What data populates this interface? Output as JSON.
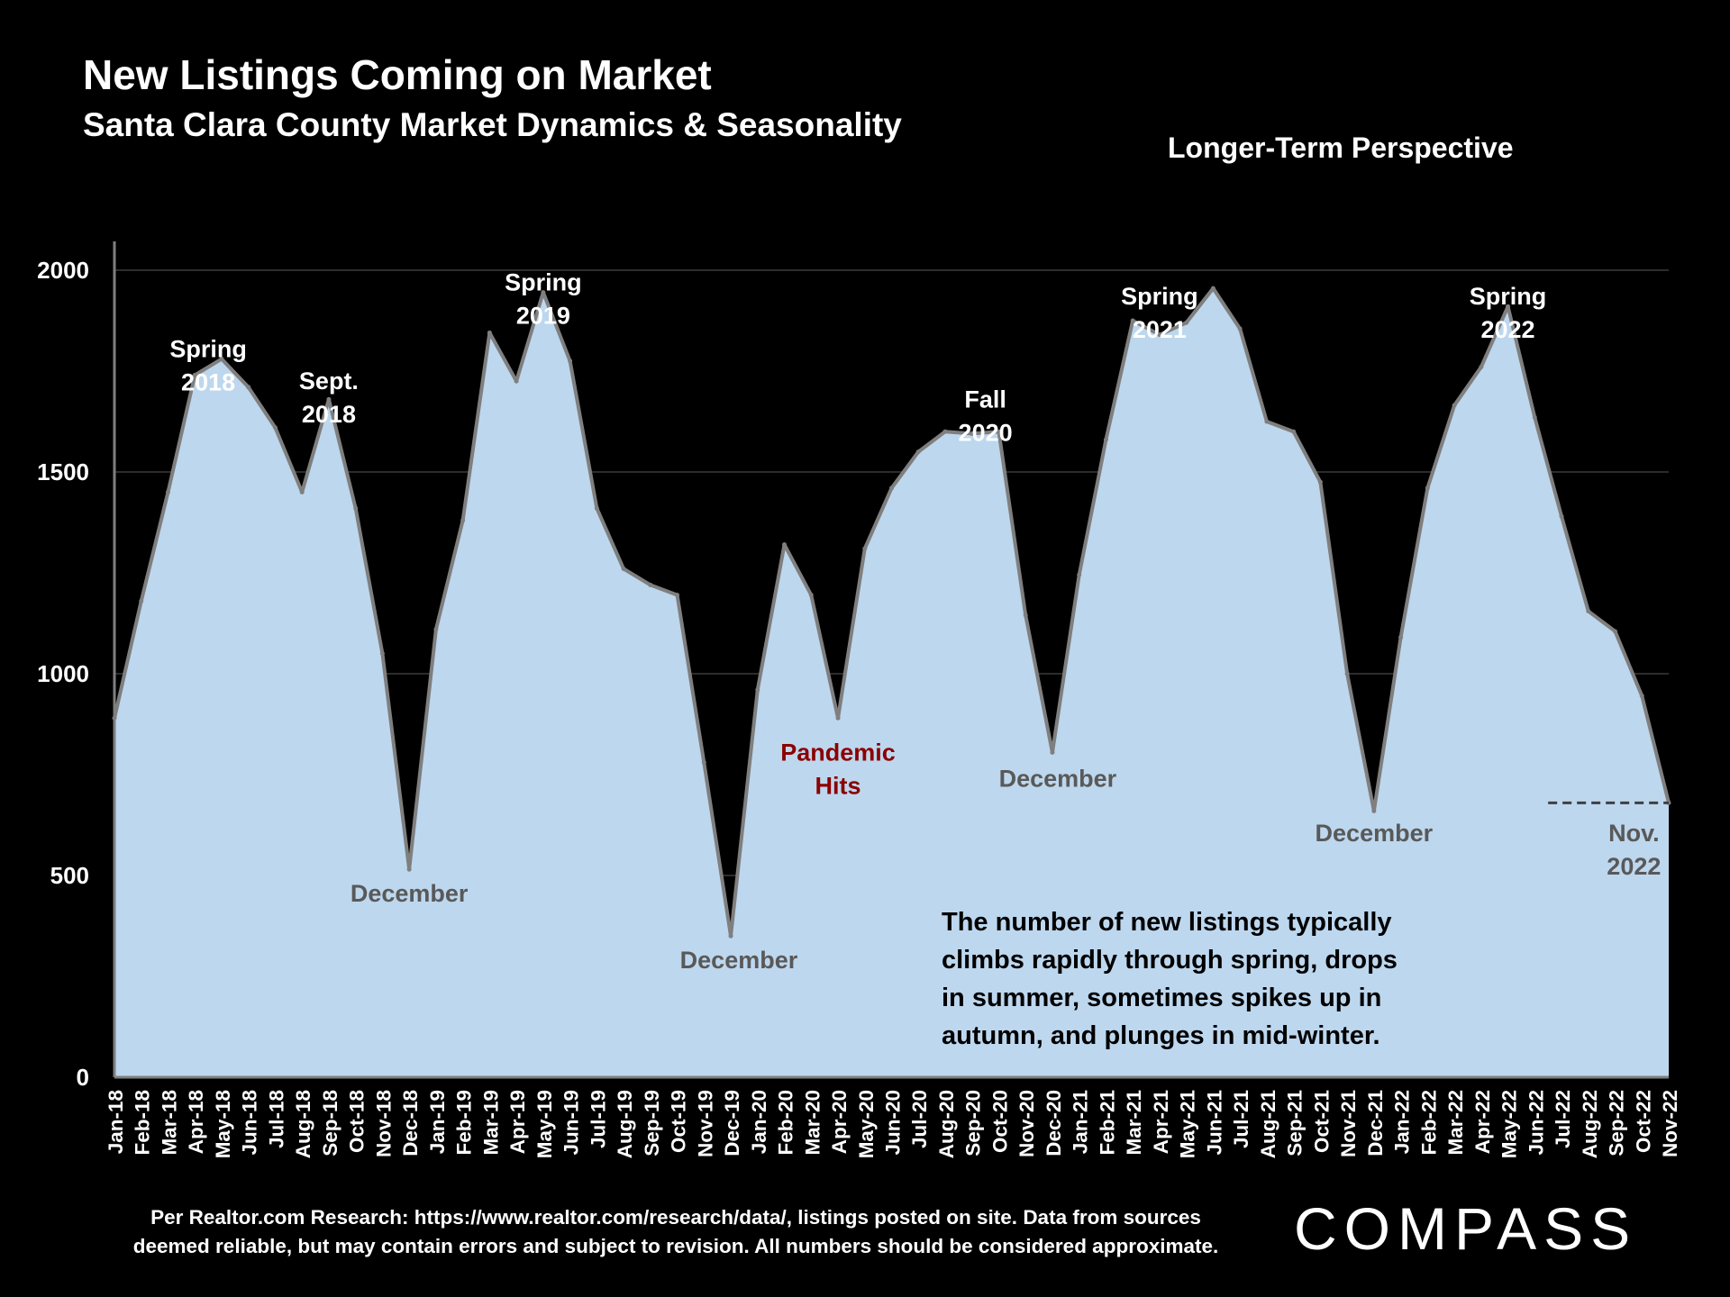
{
  "header": {
    "title": "New Listings Coming on Market",
    "subtitle": "Santa Clara County Market Dynamics & Seasonality",
    "perspective": "Longer-Term Perspective"
  },
  "footer": {
    "source_line1": "Per Realtor.com Research:  https://www.realtor.com/research/data/, listings posted on site. Data from sources",
    "source_line2": "deemed reliable, but may contain errors and subject to revision. All numbers should be considered approximate.",
    "logo": "COMPASS"
  },
  "colors": {
    "fill": "#bdd7ee",
    "line": "#7f7f7f",
    "annotation_red": "#8b0000",
    "annotation_gray": "#595959"
  },
  "chart_data": {
    "type": "area",
    "ylim": [
      0,
      2000
    ],
    "yticks": [
      0,
      500,
      1000,
      1500,
      2000
    ],
    "grid": true,
    "categories": [
      "Jan-18",
      "Feb-18",
      "Mar-18",
      "Apr-18",
      "May-18",
      "Jun-18",
      "Jul-18",
      "Aug-18",
      "Sep-18",
      "Oct-18",
      "Nov-18",
      "Dec-18",
      "Jan-19",
      "Feb-19",
      "Mar-19",
      "Apr-19",
      "May-19",
      "Jun-19",
      "Jul-19",
      "Aug-19",
      "Sep-19",
      "Oct-19",
      "Nov-19",
      "Dec-19",
      "Jan-20",
      "Feb-20",
      "Mar-20",
      "Apr-20",
      "May-20",
      "Jun-20",
      "Jul-20",
      "Aug-20",
      "Sep-20",
      "Oct-20",
      "Nov-20",
      "Dec-20",
      "Jan-21",
      "Feb-21",
      "Mar-21",
      "Apr-21",
      "May-21",
      "Jun-21",
      "Jul-21",
      "Aug-21",
      "Sep-21",
      "Oct-21",
      "Nov-21",
      "Dec-21",
      "Jan-22",
      "Feb-22",
      "Mar-22",
      "Apr-22",
      "May-22",
      "Jun-22",
      "Jul-22",
      "Aug-22",
      "Sep-22",
      "Oct-22",
      "Nov-22"
    ],
    "values": [
      890,
      1180,
      1450,
      1740,
      1780,
      1710,
      1610,
      1450,
      1680,
      1410,
      1050,
      515,
      1110,
      1380,
      1845,
      1725,
      1945,
      1775,
      1410,
      1260,
      1220,
      1195,
      780,
      350,
      960,
      1320,
      1195,
      890,
      1310,
      1460,
      1550,
      1600,
      1595,
      1600,
      1145,
      805,
      1245,
      1580,
      1875,
      1840,
      1870,
      1955,
      1855,
      1625,
      1600,
      1475,
      1000,
      660,
      1090,
      1460,
      1665,
      1760,
      1910,
      1635,
      1390,
      1155,
      1105,
      945,
      680
    ],
    "annotations": [
      {
        "text": [
          "Spring",
          "2018"
        ],
        "x": 3.5,
        "y": 1785,
        "color": "white"
      },
      {
        "text": [
          "Sept.",
          "2018"
        ],
        "x": 8,
        "y": 1705,
        "color": "white"
      },
      {
        "text": [
          "Spring",
          "2019"
        ],
        "x": 16,
        "y": 1950,
        "color": "white"
      },
      {
        "text": [
          "Fall",
          "2020"
        ],
        "x": 32.5,
        "y": 1660,
        "color": "white"
      },
      {
        "text": [
          "Spring",
          "2021"
        ],
        "x": 39,
        "y": 1915,
        "color": "white"
      },
      {
        "text": [
          "Spring",
          "2022"
        ],
        "x": 52,
        "y": 1915,
        "color": "white"
      },
      {
        "text": [
          "December"
        ],
        "x": 11,
        "y": 435,
        "color": "gray"
      },
      {
        "text": [
          "December"
        ],
        "x": 23.3,
        "y": 270,
        "color": "gray"
      },
      {
        "text": [
          "December"
        ],
        "x": 35.2,
        "y": 720,
        "color": "gray"
      },
      {
        "text": [
          "December"
        ],
        "x": 47,
        "y": 585,
        "color": "gray"
      },
      {
        "text": [
          "Pandemic",
          "Hits"
        ],
        "x": 27,
        "y": 785,
        "color": "red"
      },
      {
        "text": [
          "Nov.",
          "2022"
        ],
        "x": 56.7,
        "y": 585,
        "color": "gray"
      }
    ],
    "reference_line": {
      "y": 680,
      "x_start": 53.5,
      "x_end": 58
    },
    "note": [
      "The number of new listings typically",
      "climbs rapidly through spring, drops",
      "in summer, sometimes spikes up in",
      "autumn, and plunges in mid-winter."
    ]
  }
}
